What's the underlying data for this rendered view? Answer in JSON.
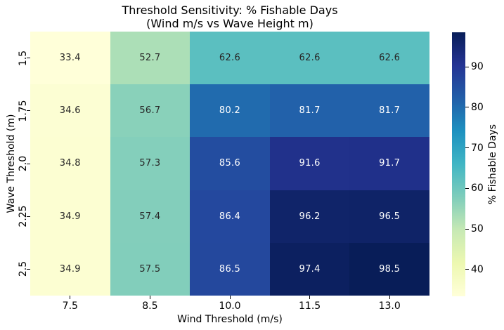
{
  "title": {
    "line1": "Threshold Sensitivity: % Fishable Days",
    "line2": "(Wind m/s vs Wave Height m)"
  },
  "chart_data": {
    "type": "heatmap",
    "title": "Threshold Sensitivity: % Fishable Days\n(Wind m/s vs Wave Height m)",
    "xlabel": "Wind Threshold (m/s)",
    "ylabel": "Wave Threshold (m)",
    "x_ticklabels": [
      "7.5",
      "8.5",
      "10.0",
      "11.5",
      "13.0"
    ],
    "y_ticklabels": [
      "1.5",
      "1.75",
      "2.0",
      "2.25",
      "2.5"
    ],
    "values": [
      [
        33.4,
        52.7,
        62.6,
        62.6,
        62.6
      ],
      [
        34.6,
        56.7,
        80.2,
        81.7,
        81.7
      ],
      [
        34.8,
        57.3,
        85.6,
        91.6,
        91.7
      ],
      [
        34.9,
        57.4,
        86.4,
        96.2,
        96.5
      ],
      [
        34.9,
        57.5,
        86.5,
        97.4,
        98.5
      ]
    ],
    "vmin": 33.4,
    "vmax": 98.5,
    "colormap": {
      "name": "YlGnBu",
      "stops": [
        "#ffffd9",
        "#edf8b1",
        "#c7e9b4",
        "#7fcdbb",
        "#41b6c4",
        "#1d91c0",
        "#225ea8",
        "#253494",
        "#081d58"
      ]
    },
    "colorbar": {
      "label": "% Fishable Days",
      "ticks": [
        40,
        50,
        60,
        70,
        80,
        90
      ]
    },
    "annot_colors": {
      "dark": "#262626",
      "light": "#ffffff"
    },
    "background": "#ffffff",
    "grid": false,
    "legend_position": "right-colorbar"
  }
}
